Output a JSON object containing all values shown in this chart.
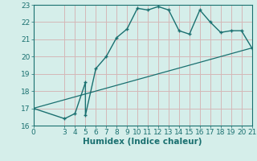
{
  "xlabel": "Humidex (Indice chaleur)",
  "ylabel": "",
  "bg_color": "#d5eeea",
  "grid_color": "#d4b8b8",
  "line_color": "#1a7070",
  "xlim": [
    0,
    21
  ],
  "ylim": [
    16,
    23
  ],
  "xticks": [
    0,
    3,
    4,
    5,
    6,
    7,
    8,
    9,
    10,
    11,
    12,
    13,
    14,
    15,
    16,
    17,
    18,
    19,
    20,
    21
  ],
  "yticks": [
    16,
    17,
    18,
    19,
    20,
    21,
    22,
    23
  ],
  "curve_x": [
    0,
    3,
    4,
    5,
    5,
    6,
    7,
    8,
    9,
    10,
    11,
    12,
    13,
    14,
    15,
    16,
    17,
    18,
    19,
    20,
    21
  ],
  "curve_y": [
    17.0,
    16.4,
    16.7,
    18.5,
    16.6,
    19.3,
    20.0,
    21.1,
    21.6,
    22.8,
    22.7,
    22.9,
    22.7,
    21.5,
    21.3,
    22.7,
    22.0,
    21.4,
    21.5,
    21.5,
    20.5
  ],
  "line_x": [
    0,
    21
  ],
  "line_y": [
    17.0,
    20.5
  ],
  "font_size": 7.5,
  "tick_font_size": 6.5,
  "xlabel_fontweight": "bold"
}
